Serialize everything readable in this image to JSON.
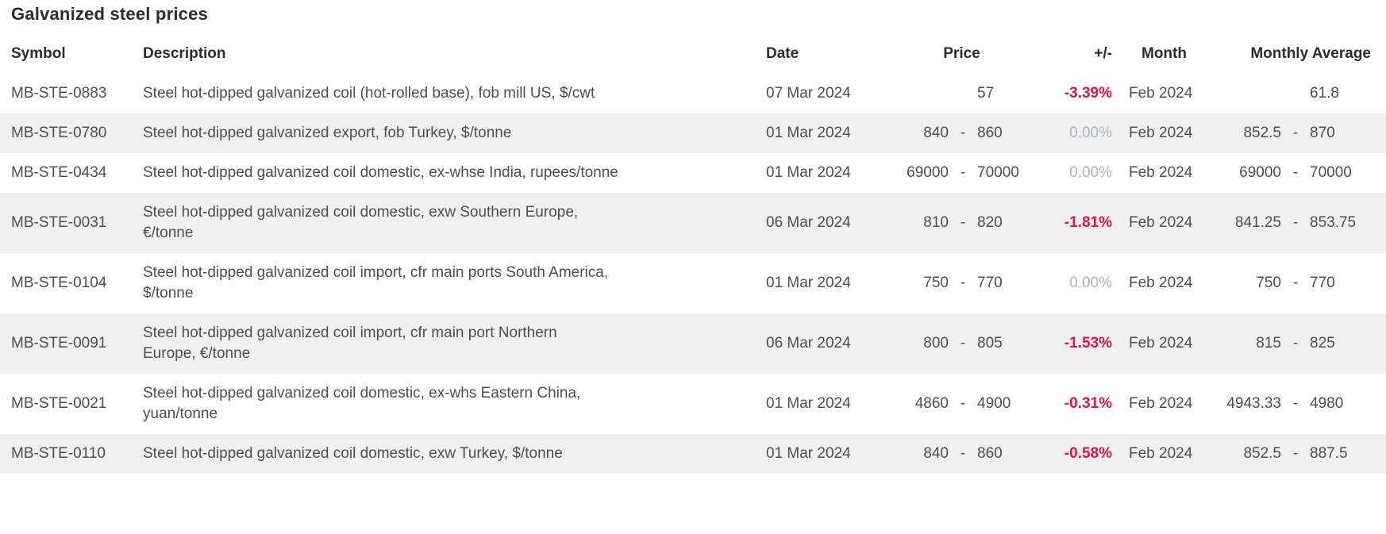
{
  "title": "Galvanized steel prices",
  "colors": {
    "negative_change": "#e3134c",
    "zero_change": "#a9b3c0",
    "row_stripe_bg": "#f0f0f0",
    "heading_text": "#2d2d2f",
    "body_text": "#4d4e52"
  },
  "table": {
    "headers": {
      "symbol": "Symbol",
      "description": "Description",
      "date": "Date",
      "price": "Price",
      "change": "+/-",
      "month": "Month",
      "monthly_average": "Monthly Average"
    },
    "rows": [
      {
        "symbol": "MB-STE-0883",
        "description_lines": [
          "Steel hot-dipped galvanized coil (hot-rolled base), fob mill US, $/cwt"
        ],
        "date": "07 Mar 2024",
        "price_low": "",
        "price_sep": "",
        "price_high": "57",
        "change": "-3.39%",
        "change_state": "negative",
        "month": "Feb 2024",
        "avg_low": "",
        "avg_sep": "",
        "avg_high": "61.8"
      },
      {
        "symbol": "MB-STE-0780",
        "description_lines": [
          "Steel hot-dipped galvanized export, fob Turkey, $/tonne"
        ],
        "date": "01 Mar 2024",
        "price_low": "840",
        "price_sep": "-",
        "price_high": "860",
        "change": "0.00%",
        "change_state": "zero",
        "month": "Feb 2024",
        "avg_low": "852.5",
        "avg_sep": "-",
        "avg_high": "870"
      },
      {
        "symbol": "MB-STE-0434",
        "description_lines": [
          "Steel hot-dipped galvanized coil domestic, ex-whse India, rupees/tonne"
        ],
        "date": "01 Mar 2024",
        "price_low": "69000",
        "price_sep": "-",
        "price_high": "70000",
        "change": "0.00%",
        "change_state": "zero",
        "month": "Feb 2024",
        "avg_low": "69000",
        "avg_sep": "-",
        "avg_high": "70000"
      },
      {
        "symbol": "MB-STE-0031",
        "description_lines": [
          "Steel hot-dipped galvanized coil domestic, exw Southern Europe,",
          "€/tonne"
        ],
        "date": "06 Mar 2024",
        "price_low": "810",
        "price_sep": "-",
        "price_high": "820",
        "change": "-1.81%",
        "change_state": "negative",
        "month": "Feb 2024",
        "avg_low": "841.25",
        "avg_sep": "-",
        "avg_high": "853.75"
      },
      {
        "symbol": "MB-STE-0104",
        "description_lines": [
          "Steel hot-dipped galvanized coil import, cfr main ports South America,",
          "$/tonne"
        ],
        "date": "01 Mar 2024",
        "price_low": "750",
        "price_sep": "-",
        "price_high": "770",
        "change": "0.00%",
        "change_state": "zero",
        "month": "Feb 2024",
        "avg_low": "750",
        "avg_sep": "-",
        "avg_high": "770"
      },
      {
        "symbol": "MB-STE-0091",
        "description_lines": [
          "Steel hot-dipped galvanized coil import, cfr main port Northern",
          "Europe, €/tonne"
        ],
        "date": "06 Mar 2024",
        "price_low": "800",
        "price_sep": "-",
        "price_high": "805",
        "change": "-1.53%",
        "change_state": "negative",
        "month": "Feb 2024",
        "avg_low": "815",
        "avg_sep": "-",
        "avg_high": "825"
      },
      {
        "symbol": "MB-STE-0021",
        "description_lines": [
          "Steel hot-dipped galvanized coil domestic, ex-whs Eastern China,",
          "yuan/tonne"
        ],
        "date": "01 Mar 2024",
        "price_low": "4860",
        "price_sep": "-",
        "price_high": "4900",
        "change": "-0.31%",
        "change_state": "negative",
        "month": "Feb 2024",
        "avg_low": "4943.33",
        "avg_sep": "-",
        "avg_high": "4980"
      },
      {
        "symbol": "MB-STE-0110",
        "description_lines": [
          "Steel hot-dipped galvanized coil domestic, exw Turkey, $/tonne"
        ],
        "date": "01 Mar 2024",
        "price_low": "840",
        "price_sep": "-",
        "price_high": "860",
        "change": "-0.58%",
        "change_state": "negative",
        "month": "Feb 2024",
        "avg_low": "852.5",
        "avg_sep": "-",
        "avg_high": "887.5"
      }
    ]
  }
}
